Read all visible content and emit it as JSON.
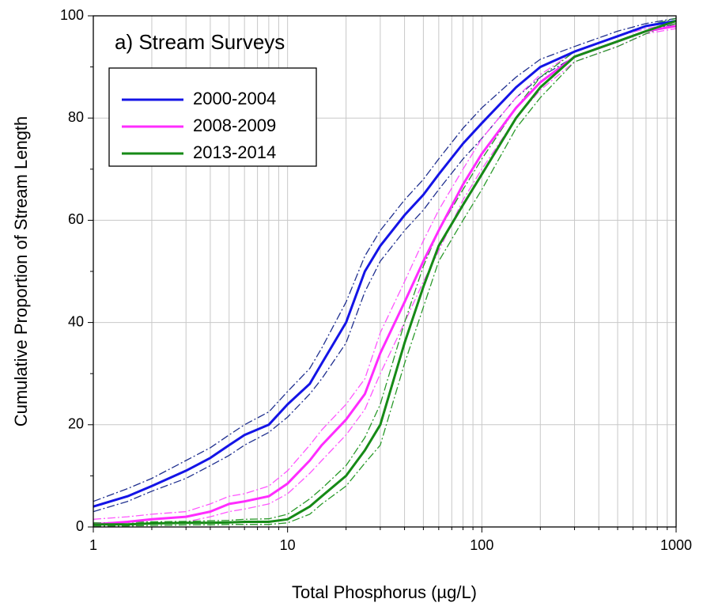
{
  "chart_data": {
    "type": "line",
    "title": "a) Stream Surveys",
    "x_label": "Total Phosphorus (µg/L)",
    "y_label": "Cumulative Proportion of Stream Length",
    "x": [
      1,
      1.5,
      2,
      3,
      4,
      5,
      6,
      8,
      10,
      13,
      15,
      20,
      25,
      30,
      40,
      50,
      60,
      80,
      100,
      150,
      200,
      300,
      500,
      700,
      1000
    ],
    "series": [
      {
        "name": "2000-2004",
        "color": "#1414e6",
        "band_color": "#1f2f8f",
        "values": [
          4,
          6,
          8,
          11,
          13.5,
          16,
          18,
          20,
          24,
          28,
          32,
          40,
          50,
          55,
          61,
          65,
          69,
          75,
          79,
          86,
          90,
          93,
          96,
          98,
          99
        ],
        "upper": [
          5,
          7.5,
          9.5,
          13,
          15.5,
          18,
          20,
          22.5,
          26.5,
          31,
          35,
          44,
          53,
          58,
          64,
          68,
          72,
          78,
          82,
          88,
          91.5,
          94,
          97,
          98.5,
          99.5
        ],
        "lower": [
          3,
          5,
          7,
          9.5,
          12,
          14,
          16,
          18.5,
          21.5,
          26,
          29,
          36,
          46,
          52,
          58,
          62,
          66,
          72,
          76,
          84,
          88,
          92,
          95,
          97,
          98.5
        ]
      },
      {
        "name": "2008-2009",
        "color": "#ff2cff",
        "band_color": "#ff55ff",
        "values": [
          0.5,
          1,
          1.5,
          2,
          3,
          4.5,
          5,
          6,
          8.5,
          13,
          16,
          21,
          26,
          34,
          44,
          52,
          58,
          67,
          73,
          82,
          87,
          92,
          95,
          97,
          98
        ],
        "upper": [
          1.5,
          2,
          2.5,
          3,
          4.5,
          6,
          6.5,
          8,
          11,
          16,
          19,
          24,
          29,
          38,
          48,
          56,
          62,
          70,
          76,
          84,
          88.5,
          93,
          96,
          97.5,
          98.5
        ],
        "lower": [
          0,
          0.3,
          0.7,
          1,
          2,
          3,
          3.5,
          4.5,
          6.5,
          10.5,
          13,
          18,
          23,
          30,
          40,
          48,
          54,
          64,
          70,
          80,
          85.5,
          91,
          94,
          96.5,
          97.5
        ]
      },
      {
        "name": "2013-2014",
        "color": "#168a16",
        "band_color": "#2a9a2a",
        "values": [
          0.5,
          0.5,
          0.7,
          0.8,
          0.8,
          0.9,
          1,
          1,
          1.5,
          4,
          6,
          10,
          15,
          20,
          36,
          47,
          55,
          63,
          69,
          80,
          86,
          92,
          95,
          97,
          99
        ],
        "upper": [
          0.8,
          0.9,
          1,
          1.1,
          1.2,
          1.3,
          1.5,
          1.6,
          2.5,
          5.5,
          7.5,
          12,
          17.5,
          24,
          40,
          51,
          58,
          66,
          72,
          82,
          88,
          93,
          96,
          98,
          99.5
        ],
        "lower": [
          0.2,
          0.2,
          0.3,
          0.4,
          0.4,
          0.5,
          0.5,
          0.5,
          0.8,
          2.5,
          4.5,
          8,
          12.5,
          16,
          32,
          43,
          52,
          60,
          66,
          78,
          84,
          91,
          94,
          96.5,
          98.5
        ]
      }
    ],
    "xlim": [
      1,
      1000
    ],
    "ylim": [
      0,
      100
    ],
    "xticks": [
      1,
      10,
      100,
      1000
    ],
    "xminorticks": [
      2,
      3,
      4,
      5,
      6,
      7,
      8,
      9,
      20,
      30,
      40,
      50,
      60,
      70,
      80,
      90,
      200,
      300,
      400,
      500,
      600,
      700,
      800,
      900
    ],
    "yticks": [
      0,
      20,
      40,
      60,
      80,
      100
    ],
    "yminorticks": [
      10,
      30,
      50,
      70,
      90
    ],
    "log_x": true,
    "grid": true,
    "legend": "upper left"
  }
}
